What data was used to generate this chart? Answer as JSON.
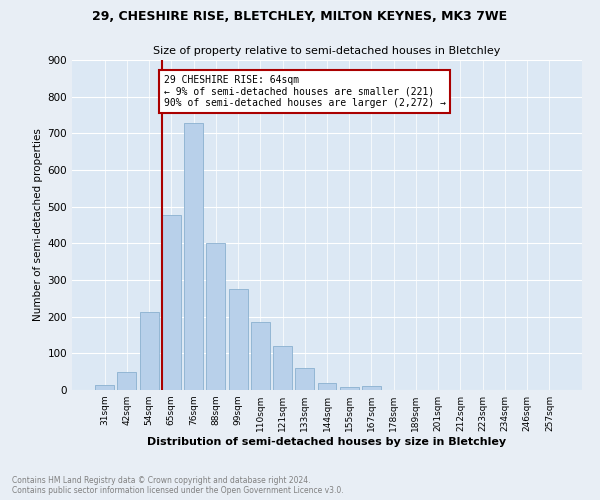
{
  "title": "29, CHESHIRE RISE, BLETCHLEY, MILTON KEYNES, MK3 7WE",
  "subtitle": "Size of property relative to semi-detached houses in Bletchley",
  "xlabel": "Distribution of semi-detached houses by size in Bletchley",
  "ylabel": "Number of semi-detached properties",
  "categories": [
    "31sqm",
    "42sqm",
    "54sqm",
    "65sqm",
    "76sqm",
    "88sqm",
    "99sqm",
    "110sqm",
    "121sqm",
    "133sqm",
    "144sqm",
    "155sqm",
    "167sqm",
    "178sqm",
    "189sqm",
    "201sqm",
    "212sqm",
    "223sqm",
    "234sqm",
    "246sqm",
    "257sqm"
  ],
  "values": [
    15,
    48,
    213,
    478,
    728,
    402,
    275,
    185,
    120,
    60,
    20,
    8,
    10,
    0,
    0,
    0,
    0,
    0,
    0,
    0,
    0
  ],
  "bar_color": "#b8d0ea",
  "bar_edge_color": "#8ab0d0",
  "vline_x_index": 3,
  "vline_color": "#aa0000",
  "annotation_text": "29 CHESHIRE RISE: 64sqm\n← 9% of semi-detached houses are smaller (221)\n90% of semi-detached houses are larger (2,272) →",
  "annotation_box_color": "#aa0000",
  "annotation_bg": "#ffffff",
  "ylim": [
    0,
    900
  ],
  "yticks": [
    0,
    100,
    200,
    300,
    400,
    500,
    600,
    700,
    800,
    900
  ],
  "footer1": "Contains HM Land Registry data © Crown copyright and database right 2024.",
  "footer2": "Contains public sector information licensed under the Open Government Licence v3.0.",
  "bg_color": "#e8eef5",
  "plot_bg": "#dce8f4"
}
